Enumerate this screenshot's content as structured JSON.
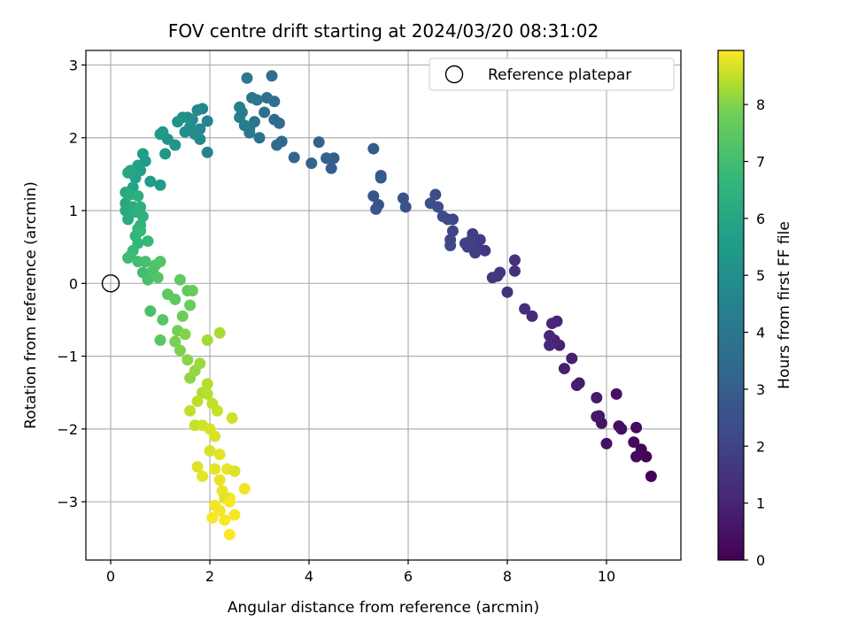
{
  "chart_data": {
    "type": "scatter",
    "title": "FOV centre drift starting at 2024/03/20 08:31:02",
    "xlabel": "Angular distance from reference (arcmin)",
    "ylabel": "Rotation from reference (arcmin)",
    "xlim": [
      -0.5,
      11.5
    ],
    "ylim": [
      -3.8,
      3.2
    ],
    "xticks": [
      0,
      2,
      4,
      6,
      8,
      10
    ],
    "yticks": [
      -3,
      -2,
      -1,
      0,
      1,
      2,
      3
    ],
    "grid": true,
    "legend": {
      "placement": "top-right",
      "entries": [
        "Reference platepar"
      ]
    },
    "reference": {
      "x": 0,
      "y": 0
    },
    "colorbar": {
      "label": "Hours from first FF file",
      "colormap": "viridis",
      "range": [
        0,
        8.95
      ],
      "ticks": [
        0,
        1,
        2,
        3,
        4,
        5,
        6,
        7,
        8
      ]
    },
    "points": [
      [
        10.9,
        -2.65,
        0.05
      ],
      [
        10.8,
        -2.38,
        0.1
      ],
      [
        10.7,
        -2.28,
        0.15
      ],
      [
        10.6,
        -2.38,
        0.2
      ],
      [
        10.55,
        -2.18,
        0.25
      ],
      [
        10.6,
        -1.98,
        0.3
      ],
      [
        10.3,
        -2.0,
        0.35
      ],
      [
        10.25,
        -1.96,
        0.4
      ],
      [
        10.2,
        -1.52,
        0.45
      ],
      [
        10.0,
        -2.2,
        0.5
      ],
      [
        9.9,
        -1.92,
        0.55
      ],
      [
        9.85,
        -1.82,
        0.6
      ],
      [
        9.8,
        -1.83,
        0.65
      ],
      [
        9.8,
        -1.57,
        0.7
      ],
      [
        9.45,
        -1.37,
        0.75
      ],
      [
        9.4,
        -1.4,
        0.8
      ],
      [
        9.3,
        -1.03,
        0.85
      ],
      [
        9.15,
        -1.17,
        0.9
      ],
      [
        9.05,
        -0.85,
        0.95
      ],
      [
        9.0,
        -0.52,
        1.0
      ],
      [
        8.95,
        -0.78,
        1.05
      ],
      [
        8.9,
        -0.55,
        1.1
      ],
      [
        8.85,
        -0.72,
        1.15
      ],
      [
        8.85,
        -0.85,
        1.2
      ],
      [
        8.5,
        -0.45,
        1.25
      ],
      [
        8.35,
        -0.35,
        1.3
      ],
      [
        8.15,
        0.32,
        1.35
      ],
      [
        8.15,
        0.17,
        1.4
      ],
      [
        8.0,
        -0.12,
        1.45
      ],
      [
        7.85,
        0.15,
        1.5
      ],
      [
        7.8,
        0.1,
        1.55
      ],
      [
        7.7,
        0.08,
        1.6
      ],
      [
        7.55,
        0.45,
        1.65
      ],
      [
        7.45,
        0.6,
        1.7
      ],
      [
        7.4,
        0.5,
        1.75
      ],
      [
        7.35,
        0.42,
        1.8
      ],
      [
        7.3,
        0.68,
        1.85
      ],
      [
        7.25,
        0.58,
        1.9
      ],
      [
        7.2,
        0.5,
        1.95
      ],
      [
        7.15,
        0.55,
        2.0
      ],
      [
        6.9,
        0.88,
        2.05
      ],
      [
        6.9,
        0.72,
        2.1
      ],
      [
        6.85,
        0.6,
        2.15
      ],
      [
        6.85,
        0.52,
        2.2
      ],
      [
        6.8,
        0.88,
        2.25
      ],
      [
        6.7,
        0.92,
        2.3
      ],
      [
        6.6,
        1.05,
        2.35
      ],
      [
        6.55,
        1.22,
        2.4
      ],
      [
        6.45,
        1.1,
        2.45
      ],
      [
        5.95,
        1.05,
        2.5
      ],
      [
        5.9,
        1.17,
        2.55
      ],
      [
        5.4,
        1.08,
        2.6
      ],
      [
        5.35,
        1.02,
        2.65
      ],
      [
        5.3,
        1.2,
        2.7
      ],
      [
        5.45,
        1.48,
        2.8
      ],
      [
        5.45,
        1.45,
        2.85
      ],
      [
        5.3,
        1.85,
        2.9
      ],
      [
        4.5,
        1.72,
        3.0
      ],
      [
        4.45,
        1.58,
        3.05
      ],
      [
        4.35,
        1.72,
        3.1
      ],
      [
        4.2,
        1.94,
        3.15
      ],
      [
        4.05,
        1.65,
        3.2
      ],
      [
        3.7,
        1.73,
        3.3
      ],
      [
        3.45,
        1.95,
        3.4
      ],
      [
        3.4,
        2.2,
        3.45
      ],
      [
        3.35,
        1.9,
        3.5
      ],
      [
        3.3,
        2.25,
        3.55
      ],
      [
        3.3,
        2.5,
        3.6
      ],
      [
        3.25,
        2.85,
        3.65
      ],
      [
        3.15,
        2.55,
        3.7
      ],
      [
        3.1,
        2.35,
        3.75
      ],
      [
        3.0,
        2.0,
        3.8
      ],
      [
        2.95,
        2.52,
        3.9
      ],
      [
        2.9,
        2.22,
        3.95
      ],
      [
        2.85,
        2.55,
        4.0
      ],
      [
        2.8,
        2.12,
        4.05
      ],
      [
        2.8,
        2.07,
        4.1
      ],
      [
        2.75,
        2.82,
        4.15
      ],
      [
        2.7,
        2.17,
        4.2
      ],
      [
        2.65,
        2.35,
        4.25
      ],
      [
        2.6,
        2.42,
        4.3
      ],
      [
        2.6,
        2.28,
        4.35
      ],
      [
        1.95,
        1.8,
        4.5
      ],
      [
        1.95,
        2.23,
        4.55
      ],
      [
        1.85,
        2.4,
        4.6
      ],
      [
        1.8,
        2.12,
        4.65
      ],
      [
        1.8,
        1.98,
        4.7
      ],
      [
        1.75,
        2.38,
        4.75
      ],
      [
        1.7,
        2.05,
        4.8
      ],
      [
        1.65,
        2.25,
        4.85
      ],
      [
        1.6,
        2.15,
        4.9
      ],
      [
        1.55,
        2.28,
        4.95
      ],
      [
        1.5,
        2.08,
        5.0
      ],
      [
        1.45,
        2.28,
        5.05
      ],
      [
        1.35,
        2.22,
        5.1
      ],
      [
        1.3,
        1.9,
        5.2
      ],
      [
        1.15,
        1.98,
        5.25
      ],
      [
        1.1,
        1.78,
        5.3
      ],
      [
        1.05,
        2.08,
        5.35
      ],
      [
        1.0,
        2.05,
        5.4
      ],
      [
        1.0,
        1.35,
        5.45
      ],
      [
        0.8,
        1.4,
        5.5
      ],
      [
        0.7,
        1.68,
        5.55
      ],
      [
        0.65,
        1.78,
        5.6
      ],
      [
        0.6,
        1.55,
        5.7
      ],
      [
        0.55,
        1.62,
        5.75
      ],
      [
        0.5,
        1.45,
        5.8
      ],
      [
        0.45,
        1.32,
        5.85
      ],
      [
        0.4,
        1.55,
        5.9
      ],
      [
        0.35,
        1.52,
        5.95
      ],
      [
        0.3,
        1.25,
        6.0
      ],
      [
        0.3,
        1.1,
        6.05
      ],
      [
        0.3,
        1.0,
        6.1
      ],
      [
        0.35,
        0.88,
        6.15
      ],
      [
        0.4,
        1.22,
        6.2
      ],
      [
        0.45,
        1.05,
        6.25
      ],
      [
        0.5,
        0.98,
        6.3
      ],
      [
        0.55,
        1.2,
        6.35
      ],
      [
        0.6,
        1.05,
        6.4
      ],
      [
        0.65,
        0.92,
        6.45
      ],
      [
        0.6,
        0.8,
        6.5
      ],
      [
        0.55,
        0.75,
        6.55
      ],
      [
        0.5,
        0.65,
        6.6
      ],
      [
        0.55,
        0.55,
        6.65
      ],
      [
        0.6,
        0.72,
        6.7
      ],
      [
        0.75,
        0.58,
        6.75
      ],
      [
        0.45,
        0.45,
        6.8
      ],
      [
        0.4,
        0.38,
        6.85
      ],
      [
        0.35,
        0.35,
        6.9
      ],
      [
        0.55,
        0.3,
        6.95
      ],
      [
        0.65,
        0.15,
        7.0
      ],
      [
        0.7,
        0.3,
        7.05
      ],
      [
        0.75,
        0.05,
        7.1
      ],
      [
        0.8,
        -0.38,
        7.15
      ],
      [
        0.85,
        0.18,
        7.2
      ],
      [
        0.9,
        0.25,
        7.25
      ],
      [
        0.95,
        0.08,
        7.3
      ],
      [
        1.0,
        0.3,
        7.35
      ],
      [
        1.05,
        -0.5,
        7.4
      ],
      [
        1.0,
        -0.78,
        7.45
      ],
      [
        1.15,
        -0.15,
        7.5
      ],
      [
        1.3,
        -0.22,
        7.55
      ],
      [
        1.4,
        0.05,
        7.6
      ],
      [
        1.55,
        -0.1,
        7.65
      ],
      [
        1.65,
        -0.1,
        7.7
      ],
      [
        1.6,
        -0.3,
        7.75
      ],
      [
        1.45,
        -0.45,
        7.8
      ],
      [
        1.35,
        -0.65,
        7.85
      ],
      [
        1.3,
        -0.8,
        7.9
      ],
      [
        1.4,
        -0.92,
        7.95
      ],
      [
        1.5,
        -0.7,
        8.0
      ],
      [
        1.55,
        -1.05,
        8.05
      ],
      [
        1.6,
        -1.3,
        8.1
      ],
      [
        1.7,
        -1.2,
        8.15
      ],
      [
        1.8,
        -1.1,
        8.2
      ],
      [
        1.95,
        -0.78,
        8.25
      ],
      [
        2.2,
        -0.68,
        8.3
      ],
      [
        1.85,
        -1.5,
        8.35
      ],
      [
        1.95,
        -1.38,
        8.4
      ],
      [
        1.75,
        -1.62,
        8.45
      ],
      [
        1.6,
        -1.75,
        8.5
      ],
      [
        1.7,
        -1.95,
        8.55
      ],
      [
        1.85,
        -1.95,
        8.6
      ],
      [
        2.0,
        -2.0,
        8.65
      ],
      [
        2.1,
        -2.1,
        8.7
      ],
      [
        2.2,
        -2.35,
        8.75
      ],
      [
        2.35,
        -2.55,
        8.8
      ],
      [
        2.4,
        -2.95,
        8.85
      ],
      [
        2.5,
        -3.18,
        8.9
      ],
      [
        2.4,
        -3.45,
        8.95
      ],
      [
        2.3,
        -3.25,
        8.92
      ],
      [
        2.2,
        -3.12,
        8.88
      ],
      [
        2.05,
        -3.22,
        8.9
      ],
      [
        2.25,
        -2.85,
        8.8
      ],
      [
        2.3,
        -2.95,
        8.75
      ],
      [
        2.5,
        -2.58,
        8.7
      ],
      [
        2.7,
        -2.82,
        8.85
      ],
      [
        2.45,
        -1.85,
        8.6
      ],
      [
        2.15,
        -1.75,
        8.55
      ],
      [
        2.05,
        -1.65,
        8.5
      ],
      [
        1.95,
        -1.52,
        8.45
      ],
      [
        2.1,
        -2.55,
        8.75
      ],
      [
        2.2,
        -2.7,
        8.8
      ],
      [
        1.85,
        -2.65,
        8.78
      ],
      [
        1.75,
        -2.52,
        8.72
      ],
      [
        2.0,
        -2.3,
        8.68
      ],
      [
        2.4,
        -3.0,
        8.9
      ],
      [
        2.1,
        -3.05,
        8.87
      ]
    ]
  }
}
